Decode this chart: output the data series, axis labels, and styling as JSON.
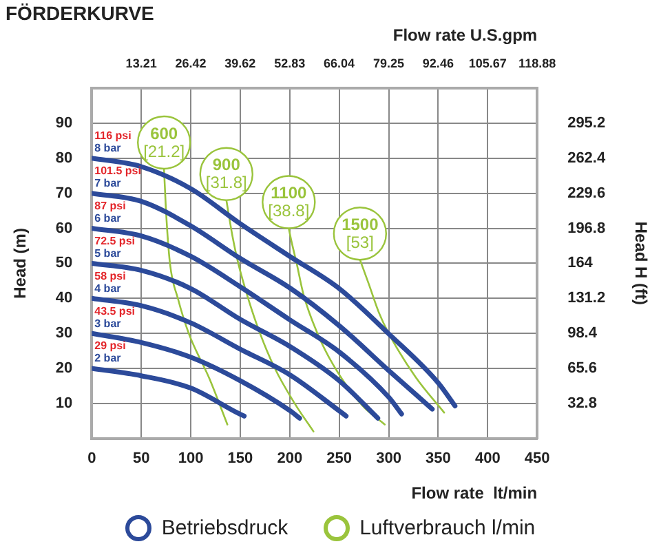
{
  "chart_data": {
    "type": "line",
    "title": "FÖRDERKURVE",
    "xlabel": "Flow rate  lt/min",
    "x2label": "Flow rate U.S.gpm",
    "ylabel": "Head (m)",
    "y2label": "Head H (ft)",
    "xlim": [
      0,
      450
    ],
    "xticks": [
      0,
      50,
      100,
      150,
      200,
      250,
      300,
      350,
      400,
      450
    ],
    "x2lim": [
      0,
      118.88
    ],
    "x2ticks": [
      13.21,
      26.42,
      39.62,
      52.83,
      66.04,
      79.25,
      92.46,
      105.67,
      118.88
    ],
    "ylim": [
      0,
      100
    ],
    "yticks": [
      10,
      20,
      30,
      40,
      50,
      60,
      70,
      80,
      90
    ],
    "y2lim": [
      0,
      328
    ],
    "y2ticks": [
      32.8,
      65.6,
      98.4,
      131.2,
      164,
      196.8,
      229.6,
      262.4,
      295.2
    ],
    "grid": true,
    "marker": "none",
    "series": [
      {
        "color": "#2c4a9a",
        "x": [
          0,
          50,
          100,
          150,
          200,
          250,
          300,
          350,
          367
        ],
        "values": [
          80,
          77.6,
          71.3,
          61.3,
          52,
          42.8,
          29.9,
          15.9,
          9.3
        ]
      },
      {
        "color": "#2c4a9a",
        "x": [
          0,
          50,
          100,
          150,
          200,
          250,
          300,
          344
        ],
        "values": [
          70,
          67.7,
          60.7,
          51.4,
          43,
          32.2,
          19.4,
          8.4
        ]
      },
      {
        "color": "#2c4a9a",
        "x": [
          0,
          50,
          100,
          150,
          200,
          250,
          300,
          313
        ],
        "values": [
          60,
          57.8,
          52,
          43.3,
          33.9,
          24.7,
          11.8,
          7
        ]
      },
      {
        "color": "#2c4a9a",
        "x": [
          0,
          50,
          100,
          150,
          200,
          250,
          289
        ],
        "values": [
          50,
          48,
          42.8,
          34,
          26.3,
          16.5,
          5.8
        ]
      },
      {
        "color": "#2c4a9a",
        "x": [
          0,
          50,
          100,
          150,
          200,
          250,
          257
        ],
        "values": [
          40,
          37.9,
          33,
          25.5,
          18.2,
          7.9,
          6.4
        ]
      },
      {
        "color": "#2c4a9a",
        "x": [
          0,
          50,
          100,
          150,
          200,
          210
        ],
        "values": [
          30,
          27.4,
          23.2,
          16.5,
          8,
          5.8
        ]
      },
      {
        "color": "#2c4a9a",
        "x": [
          0,
          50,
          100,
          148,
          154
        ],
        "values": [
          20,
          17.9,
          14.4,
          7.2,
          6.4
        ]
      },
      {
        "color": "#9ac43c",
        "x": [
          73,
          75,
          79,
          87,
          98,
          119,
          137
        ],
        "values": [
          77,
          65,
          50,
          40,
          30,
          17,
          4
        ]
      },
      {
        "color": "#9ac43c",
        "x": [
          136,
          142,
          148,
          158,
          170,
          185,
          205,
          224
        ],
        "values": [
          68,
          58,
          50,
          40,
          30,
          20,
          10,
          2
        ]
      },
      {
        "color": "#9ac43c",
        "x": [
          199,
          202,
          207,
          214,
          228,
          244,
          273,
          296
        ],
        "values": [
          60,
          56,
          50,
          41,
          30,
          21,
          9.5,
          4
        ]
      },
      {
        "color": "#9ac43c",
        "x": [
          271,
          280,
          290,
          300,
          327,
          356
        ],
        "values": [
          51,
          44,
          36,
          30,
          17.6,
          7.4
        ]
      }
    ],
    "annotations": [
      "Betriebsdruck",
      "Luftverbrauch l/min",
      {
        "text": "116 psi\n8 bar",
        "x": 0,
        "y": 80
      },
      {
        "text": "101.5 psi\n7 bar",
        "x": 0,
        "y": 70
      },
      {
        "text": "87 psi\n6 bar",
        "x": 0,
        "y": 60
      },
      {
        "text": "72.5 psi\n5 bar",
        "x": 0,
        "y": 50
      },
      {
        "text": "58 psi\n4 bar",
        "x": 0,
        "y": 40
      },
      {
        "text": "43.5 psi\n3 bar",
        "x": 0,
        "y": 30
      },
      {
        "text": "29 psi\n2 bar",
        "x": 0,
        "y": 20
      },
      {
        "text": "600\n[21.2]",
        "x": 73,
        "y": 77
      },
      {
        "text": "900\n[31.8]",
        "x": 136,
        "y": 68
      },
      {
        "text": "1100\n[38.8]",
        "x": 199,
        "y": 60
      },
      {
        "text": "1500\n[53]",
        "x": 271,
        "y": 51
      }
    ]
  }
}
